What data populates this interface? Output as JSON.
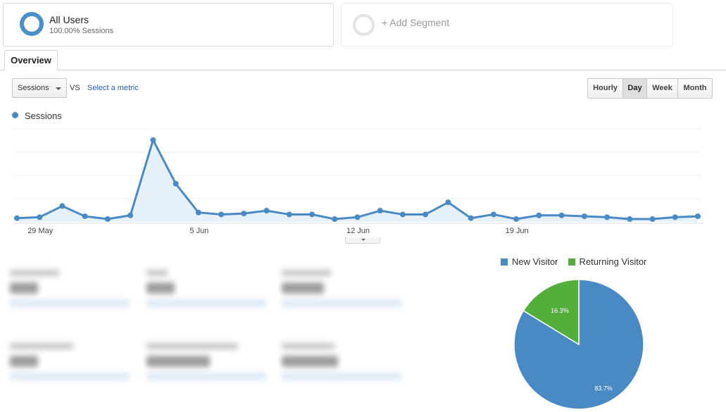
{
  "segments": {
    "all_users": {
      "title": "All Users",
      "subtitle": "100.00% Sessions"
    },
    "add_segment": {
      "label": "+ Add Segment"
    }
  },
  "tabs": [
    {
      "label": "Overview"
    }
  ],
  "controls": {
    "metric_select": "Sessions",
    "vs_label": "VS",
    "select_metric_link": "Select a metric",
    "granularity": [
      "Hourly",
      "Day",
      "Week",
      "Month"
    ],
    "granularity_selected": "Day"
  },
  "colors": {
    "accent": "#4a8ac4",
    "new_visitor": "#4a8ac4",
    "returning_visitor": "#52ad3a"
  },
  "chart_data": [
    {
      "type": "area",
      "series": [
        {
          "name": "Sessions",
          "values": [
            4,
            5,
            17,
            6,
            3,
            7,
            88,
            41,
            10,
            8,
            9,
            12,
            8,
            8,
            3,
            5,
            12,
            8,
            8,
            21,
            4,
            8,
            3,
            7,
            7,
            6,
            5,
            3,
            3,
            5,
            6
          ]
        }
      ],
      "x_tick_labels": [
        "29 May",
        "5 Jun",
        "12 Jun",
        "19 Jun"
      ],
      "x_tick_indices": [
        1,
        8,
        15,
        22
      ],
      "ylim": [
        0,
        100
      ],
      "grid": true,
      "legend": "top-left"
    },
    {
      "type": "pie",
      "categories": [
        "New Visitor",
        "Returning Visitor"
      ],
      "values": [
        83.7,
        16.3
      ],
      "labels": [
        "83.7%",
        "16.3%"
      ],
      "legend": "top"
    }
  ]
}
